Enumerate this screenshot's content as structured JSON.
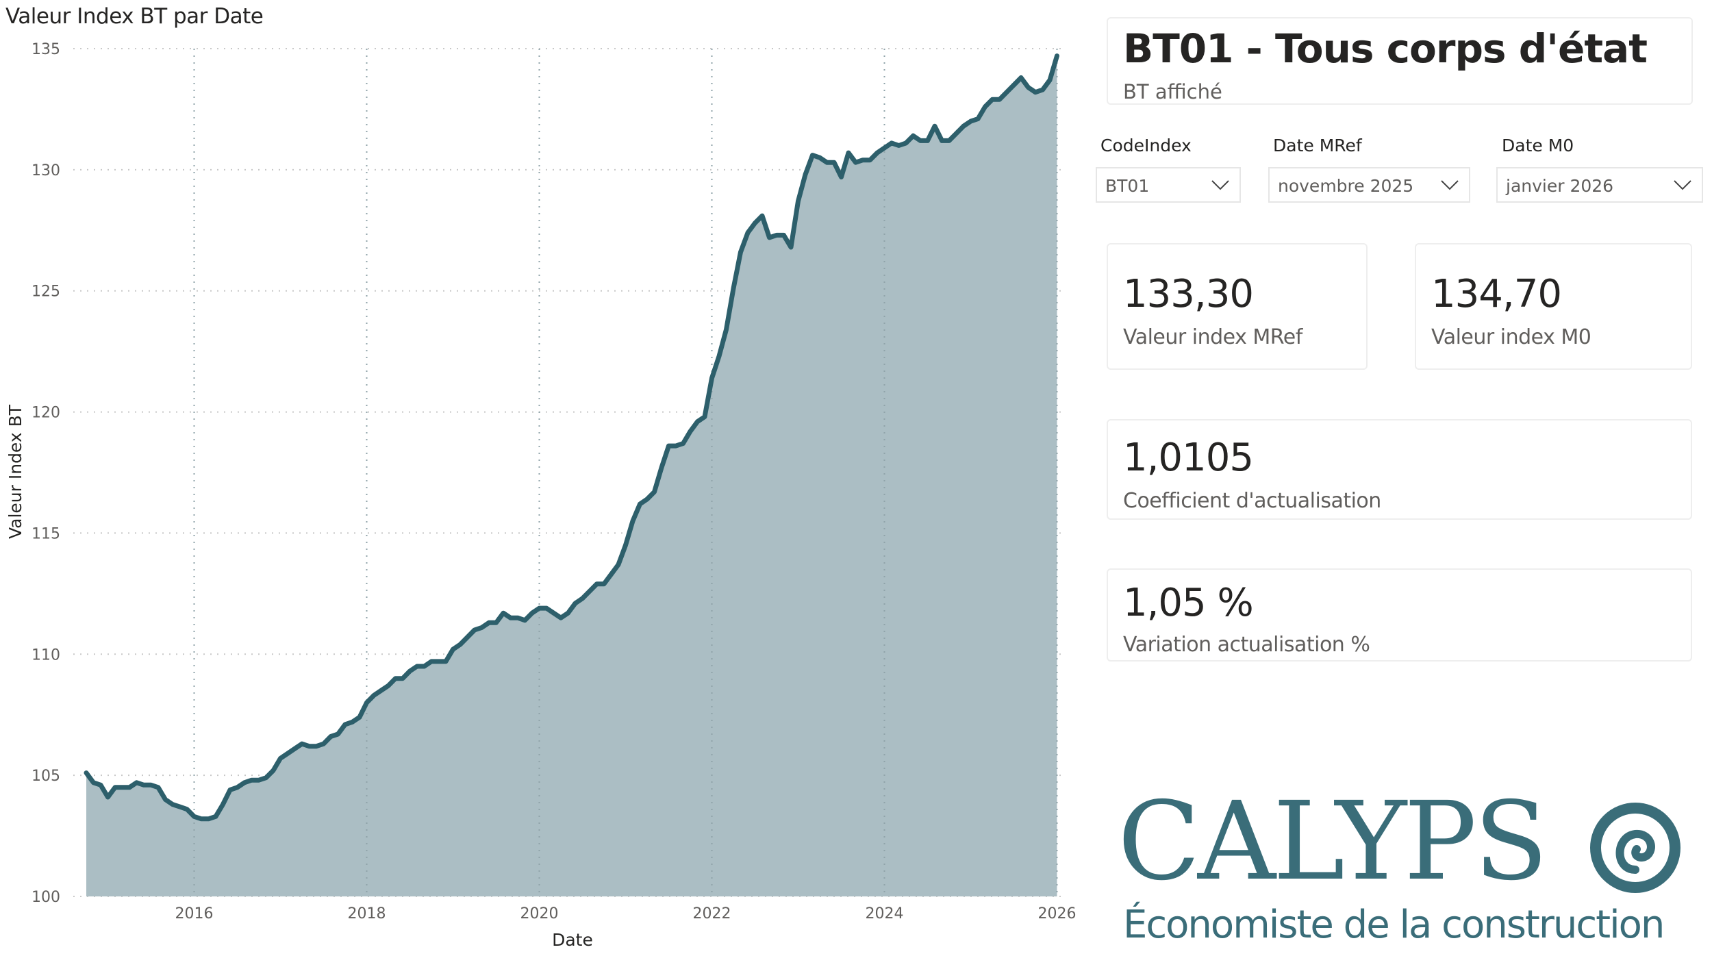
{
  "chart": {
    "title": "Valeur Index BT par Date",
    "y_axis_title": "Valeur Index BT",
    "x_axis_title": "Date"
  },
  "chart_data": {
    "type": "area",
    "title": "Valeur Index BT par Date",
    "xlabel": "Date",
    "ylabel": "Valeur Index BT",
    "ylim": [
      100,
      135
    ],
    "yticks": [
      100,
      105,
      110,
      115,
      120,
      125,
      130,
      135
    ],
    "xticks": [
      "2016",
      "2018",
      "2020",
      "2022",
      "2024",
      "2026"
    ],
    "grid": true,
    "legend": "none",
    "line_color": "#2d5f6b",
    "fill_color": "#abbec4",
    "x_start": "2014-10",
    "x_end": "2026-01",
    "frequency": "monthly",
    "series": [
      {
        "name": "Valeur Index BT",
        "values": [
          105.1,
          104.7,
          104.6,
          104.1,
          104.5,
          104.5,
          104.5,
          104.7,
          104.6,
          104.6,
          104.5,
          104.0,
          103.8,
          103.7,
          103.6,
          103.3,
          103.2,
          103.2,
          103.3,
          103.8,
          104.4,
          104.5,
          104.7,
          104.8,
          104.8,
          104.9,
          105.2,
          105.7,
          105.9,
          106.1,
          106.3,
          106.2,
          106.2,
          106.3,
          106.6,
          106.7,
          107.1,
          107.2,
          107.4,
          108.0,
          108.3,
          108.5,
          108.7,
          109.0,
          109.0,
          109.3,
          109.5,
          109.5,
          109.7,
          109.7,
          109.7,
          110.2,
          110.4,
          110.7,
          111.0,
          111.1,
          111.3,
          111.3,
          111.7,
          111.5,
          111.5,
          111.4,
          111.7,
          111.9,
          111.9,
          111.7,
          111.5,
          111.7,
          112.1,
          112.3,
          112.6,
          112.9,
          112.9,
          113.3,
          113.7,
          114.5,
          115.5,
          116.2,
          116.4,
          116.7,
          117.7,
          118.6,
          118.6,
          118.7,
          119.2,
          119.6,
          119.8,
          121.4,
          122.3,
          123.4,
          125.1,
          126.6,
          127.4,
          127.8,
          128.1,
          127.2,
          127.3,
          127.3,
          126.8,
          128.7,
          129.8,
          130.6,
          130.5,
          130.3,
          130.3,
          129.7,
          130.7,
          130.3,
          130.4,
          130.4,
          130.7,
          130.9,
          131.1,
          131.0,
          131.1,
          131.4,
          131.2,
          131.2,
          131.8,
          131.2,
          131.2,
          131.5,
          131.8,
          132.0,
          132.1,
          132.6,
          132.9,
          132.9,
          133.2,
          133.5,
          133.8,
          133.4,
          133.2,
          133.3,
          133.7,
          134.7
        ]
      }
    ]
  },
  "header_card": {
    "title": "BT01 - Tous corps d'état",
    "subtitle": "BT affiché"
  },
  "slicers": [
    {
      "label": "CodeIndex",
      "value": "BT01"
    },
    {
      "label": "Date MRef",
      "value": "novembre 2025"
    },
    {
      "label": "Date M0",
      "value": "janvier 2026"
    }
  ],
  "kpis": [
    {
      "value": "133,30",
      "label": "Valeur index MRef"
    },
    {
      "value": "134,70",
      "label": "Valeur index M0"
    },
    {
      "value": "1,0105",
      "label": "Coefficient d'actualisation"
    },
    {
      "value": "1,05 %",
      "label": "Variation actualisation %"
    }
  ],
  "logo": {
    "name": "CALYPS",
    "tagline": "Économiste de la construction",
    "color": "#3a6d79"
  }
}
